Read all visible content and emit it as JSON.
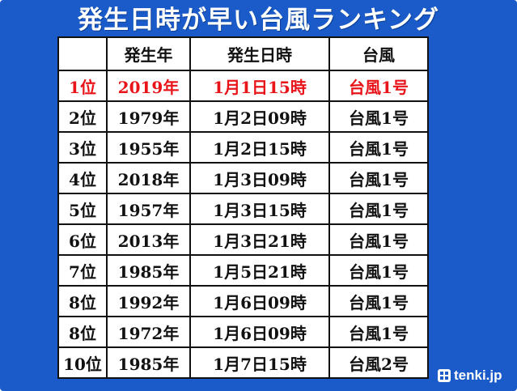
{
  "title": "発生日時が早い台風ランキング",
  "table": {
    "headers": [
      "",
      "発生年",
      "発生日時",
      "台風"
    ],
    "rows": [
      {
        "rank": "1位",
        "year": "2019年",
        "datetime": "1月1日15時",
        "typhoon": "台風1号"
      },
      {
        "rank": "2位",
        "year": "1979年",
        "datetime": "1月2日09時",
        "typhoon": "台風1号"
      },
      {
        "rank": "3位",
        "year": "1955年",
        "datetime": "1月2日15時",
        "typhoon": "台風1号"
      },
      {
        "rank": "4位",
        "year": "2018年",
        "datetime": "1月3日09時",
        "typhoon": "台風1号"
      },
      {
        "rank": "5位",
        "year": "1957年",
        "datetime": "1月3日15時",
        "typhoon": "台風1号"
      },
      {
        "rank": "6位",
        "year": "2013年",
        "datetime": "1月3日21時",
        "typhoon": "台風1号"
      },
      {
        "rank": "7位",
        "year": "1985年",
        "datetime": "1月5日21時",
        "typhoon": "台風1号"
      },
      {
        "rank": "8位",
        "year": "1992年",
        "datetime": "1月6日09時",
        "typhoon": "台風1号"
      },
      {
        "rank": "8位",
        "year": "1972年",
        "datetime": "1月6日09時",
        "typhoon": "台風1号"
      },
      {
        "rank": "10位",
        "year": "1985年",
        "datetime": "1月7日15時",
        "typhoon": "台風2号"
      }
    ]
  },
  "highlight_color": "#e8141a",
  "background_color": "#1a5bc9",
  "logo": {
    "text": "tenki.jp",
    "icon": "tenki-logo-icon"
  }
}
